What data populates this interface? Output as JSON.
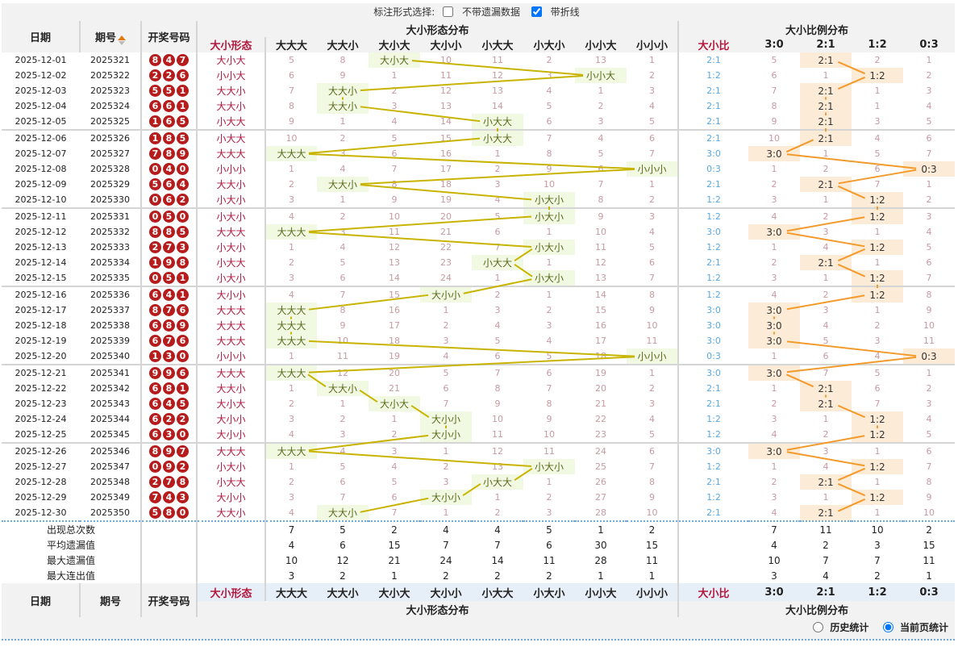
{
  "topbar": {
    "label": "标注形式选择:",
    "opt_no_miss": "不带遗漏数据",
    "opt_line": "带折线",
    "opt_no_miss_checked": false,
    "opt_line_checked": true
  },
  "header": {
    "date": "日期",
    "issue": "期号",
    "balls": "开奖号码",
    "shape_group": "大小形态分布",
    "ratio_group": "大小比例分布",
    "shape_col": "大小形态",
    "ratio_col": "大小比",
    "shape_types": [
      "大大大",
      "大大小",
      "大小大",
      "大小小",
      "小大大",
      "小大小",
      "小小大",
      "小小小"
    ],
    "ratio_types": [
      "3:0",
      "2:1",
      "1:2",
      "0:3"
    ]
  },
  "rows": [
    {
      "date": "2025-12-01",
      "issue": "2025321",
      "balls": [
        "8",
        "4",
        "7"
      ],
      "shape": "大小大",
      "shape_cells": [
        "5",
        "8",
        "大小大",
        "10",
        "11",
        "2",
        "13",
        "1"
      ],
      "ratio": "2:1",
      "ratio_cells": [
        "5",
        "2:1",
        "2",
        "1"
      ]
    },
    {
      "date": "2025-12-02",
      "issue": "2025322",
      "balls": [
        "2",
        "2",
        "6"
      ],
      "shape": "小小大",
      "shape_cells": [
        "6",
        "9",
        "1",
        "11",
        "12",
        "3",
        "小小大",
        "2"
      ],
      "ratio": "1:2",
      "ratio_cells": [
        "6",
        "1",
        "1:2",
        "2"
      ]
    },
    {
      "date": "2025-12-03",
      "issue": "2025323",
      "balls": [
        "5",
        "5",
        "1"
      ],
      "shape": "大大小",
      "shape_cells": [
        "7",
        "大大小",
        "2",
        "12",
        "13",
        "4",
        "1",
        "3"
      ],
      "ratio": "2:1",
      "ratio_cells": [
        "7",
        "2:1",
        "1",
        "3"
      ]
    },
    {
      "date": "2025-12-04",
      "issue": "2025324",
      "balls": [
        "6",
        "6",
        "1"
      ],
      "shape": "大大小",
      "shape_cells": [
        "8",
        "大大小",
        "3",
        "13",
        "14",
        "5",
        "2",
        "4"
      ],
      "ratio": "2:1",
      "ratio_cells": [
        "8",
        "2:1",
        "1",
        "4"
      ]
    },
    {
      "date": "2025-12-05",
      "issue": "2025325",
      "balls": [
        "1",
        "6",
        "5"
      ],
      "shape": "小大大",
      "shape_cells": [
        "9",
        "1",
        "4",
        "14",
        "小大大",
        "6",
        "3",
        "5"
      ],
      "ratio": "2:1",
      "ratio_cells": [
        "9",
        "2:1",
        "3",
        "5"
      ]
    },
    {
      "date": "2025-12-06",
      "issue": "2025326",
      "balls": [
        "1",
        "8",
        "5"
      ],
      "shape": "小大大",
      "shape_cells": [
        "10",
        "2",
        "5",
        "15",
        "小大大",
        "7",
        "4",
        "6"
      ],
      "ratio": "2:1",
      "ratio_cells": [
        "10",
        "2:1",
        "4",
        "6"
      ]
    },
    {
      "date": "2025-12-07",
      "issue": "2025327",
      "balls": [
        "7",
        "8",
        "9"
      ],
      "shape": "大大大",
      "shape_cells": [
        "大大大",
        "3",
        "6",
        "16",
        "1",
        "8",
        "5",
        "7"
      ],
      "ratio": "3:0",
      "ratio_cells": [
        "3:0",
        "1",
        "5",
        "7"
      ]
    },
    {
      "date": "2025-12-08",
      "issue": "2025328",
      "balls": [
        "0",
        "4",
        "0"
      ],
      "shape": "小小小",
      "shape_cells": [
        "1",
        "4",
        "7",
        "17",
        "2",
        "9",
        "6",
        "小小小"
      ],
      "ratio": "0:3",
      "ratio_cells": [
        "1",
        "2",
        "6",
        "0:3"
      ]
    },
    {
      "date": "2025-12-09",
      "issue": "2025329",
      "balls": [
        "5",
        "6",
        "4"
      ],
      "shape": "大大小",
      "shape_cells": [
        "2",
        "大大小",
        "8",
        "18",
        "3",
        "10",
        "7",
        "1"
      ],
      "ratio": "2:1",
      "ratio_cells": [
        "2",
        "2:1",
        "7",
        "1"
      ]
    },
    {
      "date": "2025-12-10",
      "issue": "2025330",
      "balls": [
        "0",
        "6",
        "2"
      ],
      "shape": "小大小",
      "shape_cells": [
        "3",
        "1",
        "9",
        "19",
        "4",
        "小大小",
        "8",
        "2"
      ],
      "ratio": "1:2",
      "ratio_cells": [
        "3",
        "1",
        "1:2",
        "2"
      ]
    },
    {
      "date": "2025-12-11",
      "issue": "2025331",
      "balls": [
        "0",
        "5",
        "0"
      ],
      "shape": "小大小",
      "shape_cells": [
        "4",
        "2",
        "10",
        "20",
        "5",
        "小大小",
        "9",
        "3"
      ],
      "ratio": "1:2",
      "ratio_cells": [
        "4",
        "2",
        "1:2",
        "3"
      ]
    },
    {
      "date": "2025-12-12",
      "issue": "2025332",
      "balls": [
        "8",
        "8",
        "5"
      ],
      "shape": "大大大",
      "shape_cells": [
        "大大大",
        "3",
        "11",
        "21",
        "6",
        "1",
        "10",
        "4"
      ],
      "ratio": "3:0",
      "ratio_cells": [
        "3:0",
        "3",
        "1",
        "4"
      ]
    },
    {
      "date": "2025-12-13",
      "issue": "2025333",
      "balls": [
        "2",
        "7",
        "3"
      ],
      "shape": "小大小",
      "shape_cells": [
        "1",
        "4",
        "12",
        "22",
        "7",
        "小大小",
        "11",
        "5"
      ],
      "ratio": "1:2",
      "ratio_cells": [
        "1",
        "4",
        "1:2",
        "5"
      ]
    },
    {
      "date": "2025-12-14",
      "issue": "2025334",
      "balls": [
        "1",
        "9",
        "8"
      ],
      "shape": "小大大",
      "shape_cells": [
        "2",
        "5",
        "13",
        "23",
        "小大大",
        "1",
        "12",
        "6"
      ],
      "ratio": "2:1",
      "ratio_cells": [
        "2",
        "2:1",
        "1",
        "6"
      ]
    },
    {
      "date": "2025-12-15",
      "issue": "2025335",
      "balls": [
        "0",
        "5",
        "1"
      ],
      "shape": "小大小",
      "shape_cells": [
        "3",
        "6",
        "14",
        "24",
        "1",
        "小大小",
        "13",
        "7"
      ],
      "ratio": "1:2",
      "ratio_cells": [
        "3",
        "1",
        "1:2",
        "7"
      ]
    },
    {
      "date": "2025-12-16",
      "issue": "2025336",
      "balls": [
        "6",
        "4",
        "1"
      ],
      "shape": "大小小",
      "shape_cells": [
        "4",
        "7",
        "15",
        "大小小",
        "2",
        "1",
        "14",
        "8"
      ],
      "ratio": "1:2",
      "ratio_cells": [
        "4",
        "2",
        "1:2",
        "8"
      ]
    },
    {
      "date": "2025-12-17",
      "issue": "2025337",
      "balls": [
        "8",
        "7",
        "6"
      ],
      "shape": "大大大",
      "shape_cells": [
        "大大大",
        "8",
        "16",
        "1",
        "3",
        "2",
        "15",
        "9"
      ],
      "ratio": "3:0",
      "ratio_cells": [
        "3:0",
        "3",
        "1",
        "9"
      ]
    },
    {
      "date": "2025-12-18",
      "issue": "2025338",
      "balls": [
        "6",
        "8",
        "9"
      ],
      "shape": "大大大",
      "shape_cells": [
        "大大大",
        "9",
        "17",
        "2",
        "4",
        "3",
        "16",
        "10"
      ],
      "ratio": "3:0",
      "ratio_cells": [
        "3:0",
        "4",
        "2",
        "10"
      ]
    },
    {
      "date": "2025-12-19",
      "issue": "2025339",
      "balls": [
        "6",
        "7",
        "6"
      ],
      "shape": "大大大",
      "shape_cells": [
        "大大大",
        "10",
        "18",
        "3",
        "5",
        "4",
        "17",
        "11"
      ],
      "ratio": "3:0",
      "ratio_cells": [
        "3:0",
        "5",
        "3",
        "11"
      ]
    },
    {
      "date": "2025-12-20",
      "issue": "2025340",
      "balls": [
        "1",
        "3",
        "0"
      ],
      "shape": "小小小",
      "shape_cells": [
        "1",
        "11",
        "19",
        "4",
        "6",
        "5",
        "18",
        "小小小"
      ],
      "ratio": "0:3",
      "ratio_cells": [
        "1",
        "6",
        "4",
        "0:3"
      ]
    },
    {
      "date": "2025-12-21",
      "issue": "2025341",
      "balls": [
        "9",
        "9",
        "6"
      ],
      "shape": "大大大",
      "shape_cells": [
        "大大大",
        "12",
        "20",
        "5",
        "7",
        "6",
        "19",
        "1"
      ],
      "ratio": "3:0",
      "ratio_cells": [
        "3:0",
        "7",
        "5",
        "1"
      ]
    },
    {
      "date": "2025-12-22",
      "issue": "2025342",
      "balls": [
        "6",
        "8",
        "1"
      ],
      "shape": "大大小",
      "shape_cells": [
        "1",
        "大大小",
        "21",
        "6",
        "8",
        "7",
        "20",
        "2"
      ],
      "ratio": "2:1",
      "ratio_cells": [
        "1",
        "2:1",
        "6",
        "2"
      ]
    },
    {
      "date": "2025-12-23",
      "issue": "2025343",
      "balls": [
        "6",
        "4",
        "5"
      ],
      "shape": "大小大",
      "shape_cells": [
        "2",
        "1",
        "大小大",
        "7",
        "9",
        "8",
        "21",
        "3"
      ],
      "ratio": "2:1",
      "ratio_cells": [
        "2",
        "2:1",
        "7",
        "3"
      ]
    },
    {
      "date": "2025-12-24",
      "issue": "2025344",
      "balls": [
        "6",
        "2",
        "2"
      ],
      "shape": "大小小",
      "shape_cells": [
        "3",
        "2",
        "1",
        "大小小",
        "10",
        "9",
        "22",
        "4"
      ],
      "ratio": "1:2",
      "ratio_cells": [
        "3",
        "1",
        "1:2",
        "4"
      ]
    },
    {
      "date": "2025-12-25",
      "issue": "2025345",
      "balls": [
        "6",
        "3",
        "0"
      ],
      "shape": "大小小",
      "shape_cells": [
        "4",
        "3",
        "2",
        "大小小",
        "11",
        "10",
        "23",
        "5"
      ],
      "ratio": "1:2",
      "ratio_cells": [
        "4",
        "2",
        "1:2",
        "5"
      ]
    },
    {
      "date": "2025-12-26",
      "issue": "2025346",
      "balls": [
        "8",
        "9",
        "7"
      ],
      "shape": "大大大",
      "shape_cells": [
        "大大大",
        "4",
        "3",
        "1",
        "12",
        "11",
        "24",
        "6"
      ],
      "ratio": "3:0",
      "ratio_cells": [
        "3:0",
        "3",
        "1",
        "6"
      ]
    },
    {
      "date": "2025-12-27",
      "issue": "2025347",
      "balls": [
        "0",
        "9",
        "2"
      ],
      "shape": "小大小",
      "shape_cells": [
        "1",
        "5",
        "4",
        "2",
        "13",
        "小大小",
        "25",
        "7"
      ],
      "ratio": "1:2",
      "ratio_cells": [
        "1",
        "4",
        "1:2",
        "7"
      ]
    },
    {
      "date": "2025-12-28",
      "issue": "2025348",
      "balls": [
        "2",
        "7",
        "8"
      ],
      "shape": "小大大",
      "shape_cells": [
        "2",
        "6",
        "5",
        "3",
        "小大大",
        "1",
        "26",
        "8"
      ],
      "ratio": "2:1",
      "ratio_cells": [
        "2",
        "2:1",
        "1",
        "8"
      ]
    },
    {
      "date": "2025-12-29",
      "issue": "2025349",
      "balls": [
        "7",
        "4",
        "3"
      ],
      "shape": "大小小",
      "shape_cells": [
        "3",
        "7",
        "6",
        "大小小",
        "1",
        "2",
        "27",
        "9"
      ],
      "ratio": "1:2",
      "ratio_cells": [
        "3",
        "1",
        "1:2",
        "9"
      ]
    },
    {
      "date": "2025-12-30",
      "issue": "2025350",
      "balls": [
        "5",
        "8",
        "0"
      ],
      "shape": "大大小",
      "shape_cells": [
        "4",
        "大大小",
        "7",
        "1",
        "2",
        "3",
        "28",
        "10"
      ],
      "ratio": "2:1",
      "ratio_cells": [
        "4",
        "2:1",
        "1",
        "10"
      ]
    }
  ],
  "stats": [
    {
      "label": "出现总次数",
      "shape": [
        "7",
        "5",
        "2",
        "4",
        "4",
        "5",
        "1",
        "2"
      ],
      "ratio": [
        "7",
        "11",
        "10",
        "2"
      ]
    },
    {
      "label": "平均遗漏值",
      "shape": [
        "4",
        "6",
        "15",
        "7",
        "7",
        "6",
        "30",
        "15"
      ],
      "ratio": [
        "4",
        "2",
        "3",
        "15"
      ]
    },
    {
      "label": "最大遗漏值",
      "shape": [
        "10",
        "12",
        "21",
        "24",
        "14",
        "11",
        "28",
        "11"
      ],
      "ratio": [
        "10",
        "7",
        "7",
        "11"
      ]
    },
    {
      "label": "最大连出值",
      "shape": [
        "3",
        "2",
        "1",
        "2",
        "2",
        "2",
        "1",
        "1"
      ],
      "ratio": [
        "3",
        "4",
        "2",
        "1"
      ]
    }
  ],
  "bottombar": {
    "history": "历史统计",
    "current": "当前页统计",
    "current_selected": true
  },
  "colors": {
    "ball": "#b71c1c",
    "shape_line": "#c8b400",
    "ratio_line": "#f39a2b",
    "shape_hit_bg": "#f2f9e3",
    "ratio_hit_bg": "#fcebd6",
    "header_red": "#b3163c"
  }
}
